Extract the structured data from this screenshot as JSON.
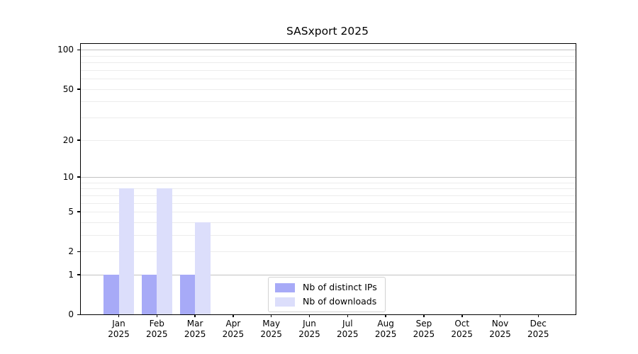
{
  "title": "SASxport 2025",
  "chart_data": {
    "type": "bar",
    "title": "SASxport 2025",
    "categories": [
      {
        "month": "Jan",
        "year": "2025"
      },
      {
        "month": "Feb",
        "year": "2025"
      },
      {
        "month": "Mar",
        "year": "2025"
      },
      {
        "month": "Apr",
        "year": "2025"
      },
      {
        "month": "May",
        "year": "2025"
      },
      {
        "month": "Jun",
        "year": "2025"
      },
      {
        "month": "Jul",
        "year": "2025"
      },
      {
        "month": "Aug",
        "year": "2025"
      },
      {
        "month": "Sep",
        "year": "2025"
      },
      {
        "month": "Oct",
        "year": "2025"
      },
      {
        "month": "Nov",
        "year": "2025"
      },
      {
        "month": "Dec",
        "year": "2025"
      }
    ],
    "series": [
      {
        "name": "Nb of distinct IPs",
        "color": "#a7aaf7",
        "values": [
          1,
          1,
          1,
          0,
          0,
          0,
          0,
          0,
          0,
          0,
          0,
          0
        ]
      },
      {
        "name": "Nb of downloads",
        "color": "#dcdefb",
        "values": [
          8,
          8,
          4,
          0,
          0,
          0,
          0,
          0,
          0,
          0,
          0,
          0
        ]
      }
    ],
    "yscale": "log1p",
    "ylim": [
      0,
      111
    ],
    "yticks": [
      0,
      1,
      2,
      5,
      10,
      20,
      50,
      100
    ],
    "major_gridlines": [
      1,
      10,
      100
    ],
    "minor_gridlines": [
      2,
      3,
      4,
      5,
      6,
      7,
      8,
      9,
      20,
      30,
      40,
      50,
      60,
      70,
      80,
      90
    ],
    "grid": "on",
    "legend_position": "lower center",
    "xlabel": "",
    "ylabel": ""
  },
  "legend": {
    "items": [
      {
        "label": "Nb of distinct IPs",
        "color": "#a7aaf7"
      },
      {
        "label": "Nb of downloads",
        "color": "#dcdefb"
      }
    ]
  },
  "colors": {
    "major_grid": "#c2c2c2",
    "minor_grid": "#ececec",
    "axis": "#000000",
    "background": "#ffffff"
  }
}
